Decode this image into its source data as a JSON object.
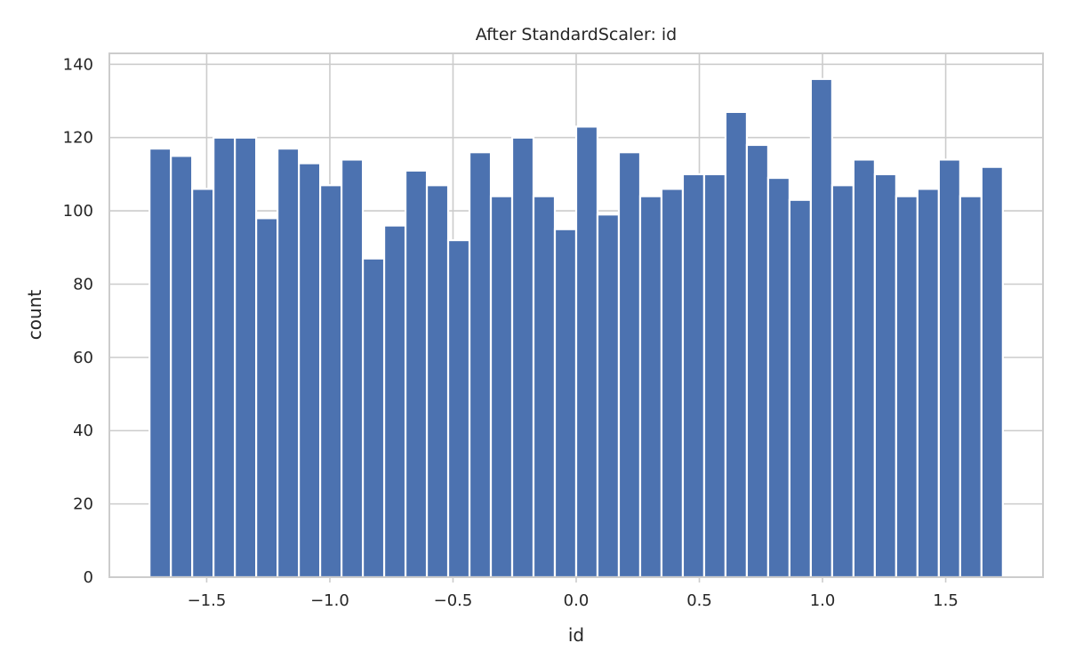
{
  "chart_data": {
    "type": "bar",
    "title": "After StandardScaler: id",
    "xlabel": "id",
    "ylabel": "count",
    "xlim": [
      -1.895,
      1.895
    ],
    "ylim": [
      0,
      143
    ],
    "xticks": [
      -1.5,
      -1.0,
      -0.5,
      0.0,
      0.5,
      1.0,
      1.5
    ],
    "xtick_labels": [
      "−1.5",
      "−1.0",
      "−0.5",
      "0.0",
      "0.5",
      "1.0",
      "1.5"
    ],
    "yticks": [
      0,
      20,
      40,
      60,
      80,
      100,
      120,
      140
    ],
    "ytick_labels": [
      "0",
      "20",
      "40",
      "60",
      "80",
      "100",
      "120",
      "140"
    ],
    "grid": true,
    "bar_color": "#4c72b0",
    "bin_range": [
      -1.732,
      1.732
    ],
    "values": [
      117,
      115,
      106,
      120,
      120,
      98,
      117,
      113,
      107,
      114,
      87,
      96,
      111,
      107,
      92,
      116,
      104,
      120,
      104,
      95,
      123,
      99,
      116,
      104,
      106,
      110,
      110,
      127,
      118,
      109,
      103,
      136,
      107,
      114,
      110,
      104,
      106,
      114,
      104,
      112
    ]
  }
}
